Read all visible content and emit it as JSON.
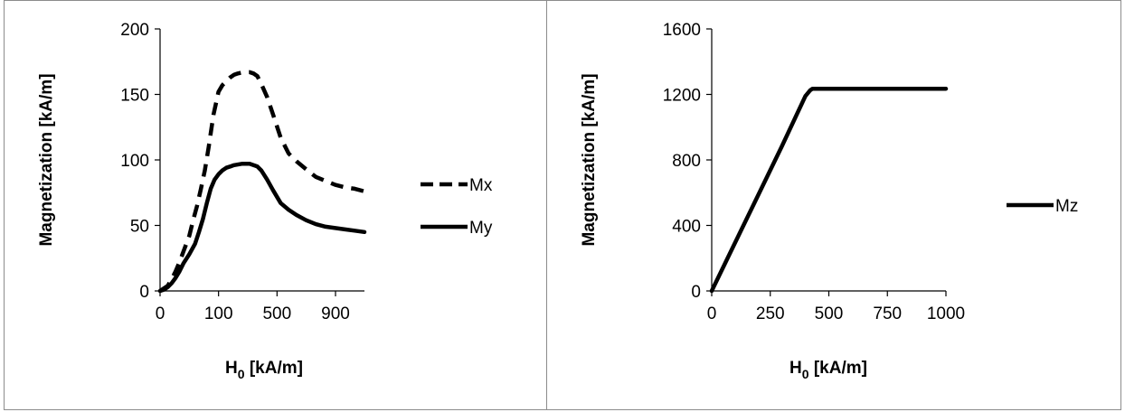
{
  "chart_data": [
    {
      "type": "line",
      "title": "",
      "xlabel": "H",
      "xlabel_sub": "0",
      "xlabel_unit": " [kA/m]",
      "ylabel": "Magnetization [kA/m]",
      "xlim": [
        0,
        1050
      ],
      "ylim": [
        0,
        200
      ],
      "x_ticks": [
        "0",
        "100",
        "500",
        "900"
      ],
      "y_ticks": [
        "0",
        "50",
        "100",
        "150",
        "200"
      ],
      "legend_position": "right",
      "grid": false,
      "series": [
        {
          "name": "Mx",
          "style": "dashed",
          "color": "#000000",
          "x": [
            0,
            20,
            40,
            60,
            80,
            100,
            120,
            150,
            170,
            190,
            210,
            230,
            250,
            265,
            275,
            290,
            300,
            320,
            340,
            360,
            380,
            400,
            430,
            460,
            480,
            500,
            520,
            550,
            580,
            620,
            660,
            700,
            750,
            800,
            850,
            900,
            950,
            1000,
            1050
          ],
          "y": [
            0,
            2,
            4,
            9,
            15,
            22,
            30,
            42,
            54,
            65,
            78,
            92,
            110,
            125,
            135,
            145,
            152,
            157,
            160,
            163,
            165,
            166,
            167,
            167,
            166,
            164,
            158,
            148,
            135,
            117,
            105,
            99,
            93,
            87,
            84,
            81,
            79,
            78,
            76
          ]
        },
        {
          "name": "My",
          "style": "solid",
          "color": "#000000",
          "x": [
            0,
            20,
            40,
            60,
            80,
            100,
            120,
            150,
            180,
            200,
            220,
            240,
            260,
            280,
            300,
            320,
            340,
            360,
            380,
            420,
            460,
            480,
            500,
            520,
            550,
            580,
            620,
            660,
            700,
            750,
            800,
            850,
            900,
            950,
            1000,
            1050
          ],
          "y": [
            0,
            1,
            3,
            6,
            10,
            15,
            21,
            28,
            36,
            45,
            55,
            67,
            78,
            85,
            89,
            92,
            94,
            95,
            96,
            97,
            97,
            96,
            95,
            92,
            85,
            77,
            67,
            62,
            58,
            54,
            51,
            49,
            48,
            47,
            46,
            45
          ]
        }
      ]
    },
    {
      "type": "line",
      "title": "",
      "xlabel": "H",
      "xlabel_sub": "0",
      "xlabel_unit": " [kA/m]",
      "ylabel": "Magnetization [kA/m]",
      "xlim": [
        0,
        1000
      ],
      "ylim": [
        0,
        1600
      ],
      "x_ticks": [
        "0",
        "250",
        "500",
        "750",
        "1000"
      ],
      "y_ticks": [
        "0",
        "400",
        "800",
        "1200",
        "1600"
      ],
      "legend_position": "right",
      "grid": false,
      "series": [
        {
          "name": "Mz",
          "style": "solid",
          "color": "#000000",
          "x": [
            0,
            100,
            200,
            300,
            400,
            420,
            430,
            450,
            600,
            800,
            1000
          ],
          "y": [
            0,
            295,
            590,
            885,
            1190,
            1225,
            1235,
            1235,
            1235,
            1235,
            1235
          ]
        }
      ]
    }
  ]
}
